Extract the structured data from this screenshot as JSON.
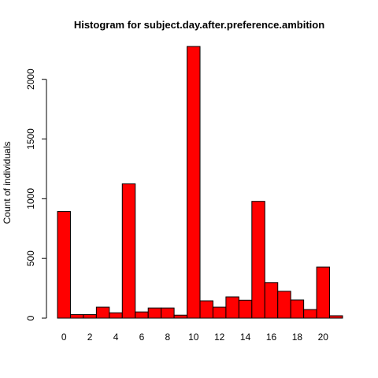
{
  "chart_data": {
    "type": "bar",
    "title": "Histogram for subject.day.after.preference.ambition",
    "xlabel": "",
    "ylabel": "Count of individuals",
    "bin_width": 1,
    "x_start": -0.5,
    "values": [
      893,
      30,
      30,
      92,
      45,
      1125,
      52,
      85,
      85,
      25,
      2275,
      145,
      92,
      178,
      150,
      978,
      298,
      225,
      152,
      72,
      428,
      20
    ],
    "xlim": [
      -0.5,
      21.5
    ],
    "ylim": [
      0,
      2275
    ],
    "x_ticks": [
      0,
      2,
      4,
      6,
      8,
      10,
      12,
      14,
      16,
      18,
      20
    ],
    "y_ticks": [
      0,
      500,
      1000,
      1500,
      2000
    ],
    "bar_color": "#ff0000",
    "bar_border": "#000000",
    "grid": false,
    "legend": "none"
  }
}
